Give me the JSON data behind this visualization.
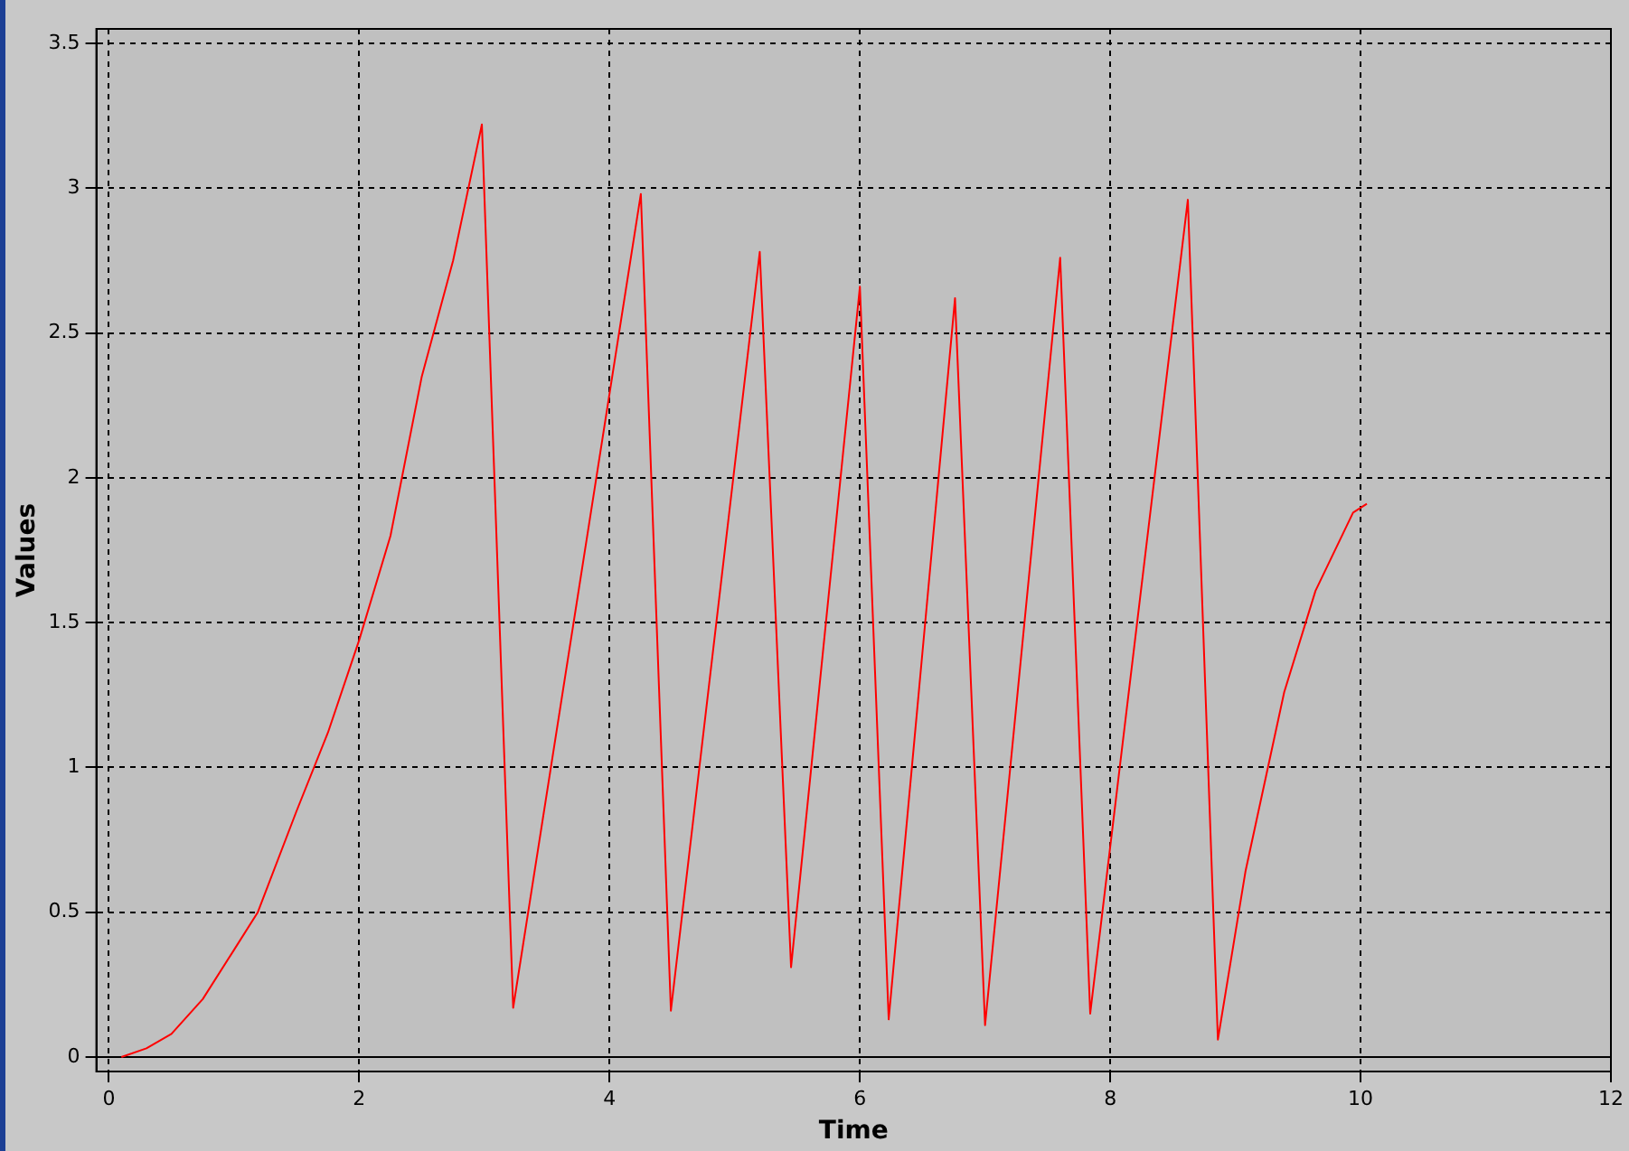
{
  "chart_data": {
    "type": "line",
    "xlabel": "Time",
    "ylabel": "Values",
    "series": [
      {
        "color": "#ff0000",
        "x": [
          0.1,
          0.3,
          0.5,
          0.75,
          1,
          1.19,
          1.5,
          1.75,
          2,
          2.25,
          2.5,
          2.75,
          2.98,
          3.23,
          4.25,
          4.49,
          5.2,
          5.45,
          6.0,
          6.23,
          6.76,
          7.0,
          7.6,
          7.84,
          8.62,
          8.86,
          9.08,
          9.39,
          9.64,
          9.94,
          10.05
        ],
        "values": [
          0,
          0.03,
          0.08,
          0.2,
          0.37,
          0.5,
          0.85,
          1.12,
          1.44,
          1.8,
          2.35,
          2.75,
          3.22,
          0.17,
          2.98,
          0.16,
          2.78,
          0.31,
          2.66,
          0.13,
          2.62,
          0.11,
          2.76,
          0.15,
          2.96,
          0.06,
          0.64,
          1.26,
          1.61,
          1.88,
          1.91
        ]
      }
    ],
    "xlim": [
      -0.1,
      12
    ],
    "xticks": [
      0,
      2,
      4,
      6,
      8,
      10,
      12
    ],
    "ylim": [
      -0.05,
      3.55
    ],
    "yticks": [
      0,
      0.5,
      1,
      1.5,
      2,
      2.5,
      3,
      3.5
    ],
    "grid": true,
    "legend": false,
    "marker": "none",
    "line_style": "solid",
    "ref_lines": [
      {
        "axis": "y",
        "value": 0,
        "color": "#000000",
        "line_style": "solid"
      }
    ]
  }
}
